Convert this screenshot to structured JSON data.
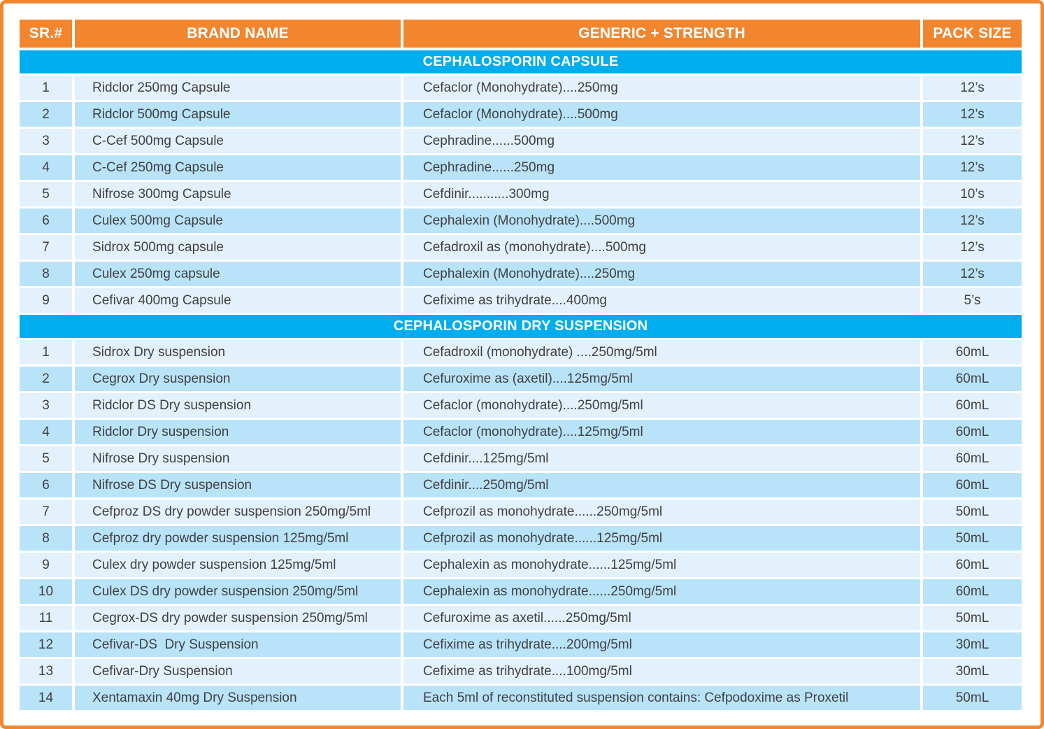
{
  "colors": {
    "accent_orange": "#F1862F",
    "accent_cyan": "#00ADEE",
    "row_light": "#E2F1FB",
    "row_dark": "#B9E3F8",
    "text": "#414042"
  },
  "table": {
    "columns": {
      "sr": "SR.#",
      "brand": "BRAND NAME",
      "generic": "GENERIC + STRENGTH",
      "pack": "PACK SIZE"
    },
    "sections": [
      {
        "title": "CEPHALOSPORIN CAPSULE",
        "rows": [
          {
            "sr": "1",
            "brand": "Ridclor 250mg Capsule",
            "generic": "Cefaclor (Monohydrate)....250mg",
            "pack": "12’s"
          },
          {
            "sr": "2",
            "brand": "Ridclor 500mg Capsule",
            "generic": "Cefaclor (Monohydrate)....500mg",
            "pack": "12’s"
          },
          {
            "sr": "3",
            "brand": "C-Cef 500mg Capsule",
            "generic": "Cephradine......500mg",
            "pack": "12’s"
          },
          {
            "sr": "4",
            "brand": "C-Cef 250mg Capsule",
            "generic": "Cephradine......250mg",
            "pack": "12’s"
          },
          {
            "sr": "5",
            "brand": "Nifrose 300mg Capsule",
            "generic": "Cefdinir...........300mg",
            "pack": "10’s"
          },
          {
            "sr": "6",
            "brand": "Culex 500mg Capsule",
            "generic": "Cephalexin (Monohydrate)....500mg",
            "pack": "12’s"
          },
          {
            "sr": "7",
            "brand": "Sidrox 500mg capsule",
            "generic": "Cefadroxil as (monohydrate)....500mg",
            "pack": "12’s"
          },
          {
            "sr": "8",
            "brand": "Culex 250mg capsule",
            "generic": "Cephalexin (Monohydrate)....250mg",
            "pack": "12’s"
          },
          {
            "sr": "9",
            "brand": "Cefivar 400mg Capsule",
            "generic": "Cefixime as trihydrate....400mg",
            "pack": "5’s"
          }
        ]
      },
      {
        "title": "CEPHALOSPORIN DRY SUSPENSION",
        "rows": [
          {
            "sr": "1",
            "brand": "Sidrox Dry suspension",
            "generic": "Cefadroxil (monohydrate) ....250mg/5ml",
            "pack": "60mL"
          },
          {
            "sr": "2",
            "brand": "Cegrox Dry suspension",
            "generic": "Cefuroxime as (axetil)....125mg/5ml",
            "pack": "60mL"
          },
          {
            "sr": "3",
            "brand": "Ridclor DS Dry suspension",
            "generic": "Cefaclor (monohydrate)....250mg/5ml",
            "pack": "60mL"
          },
          {
            "sr": "4",
            "brand": "Ridclor Dry suspension",
            "generic": "Cefaclor (monohydrate)....125mg/5ml",
            "pack": "60mL"
          },
          {
            "sr": "5",
            "brand": "Nifrose Dry suspension",
            "generic": "Cefdinir....125mg/5ml",
            "pack": "60mL"
          },
          {
            "sr": "6",
            "brand": "Nifrose DS Dry suspension",
            "generic": "Cefdinir....250mg/5ml",
            "pack": "60mL"
          },
          {
            "sr": "7",
            "brand": "Cefproz DS dry powder suspension 250mg/5ml",
            "generic": "Cefprozil as monohydrate......250mg/5ml",
            "pack": "50mL"
          },
          {
            "sr": "8",
            "brand": "Cefproz dry powder suspension 125mg/5ml",
            "generic": "Cefprozil as monohydrate......125mg/5ml",
            "pack": "50mL"
          },
          {
            "sr": "9",
            "brand": "Culex dry powder suspension 125mg/5ml",
            "generic": "Cephalexin as monohydrate......125mg/5ml",
            "pack": "60mL"
          },
          {
            "sr": "10",
            "brand": "Culex DS dry powder suspension 250mg/5ml",
            "generic": "Cephalexin as monohydrate......250mg/5ml",
            "pack": "60mL"
          },
          {
            "sr": "11",
            "brand": "Cegrox-DS dry powder suspension 250mg/5ml",
            "generic": "Cefuroxime as axetil......250mg/5ml",
            "pack": "50mL"
          },
          {
            "sr": "12",
            "brand": "Cefivar-DS  Dry Suspension",
            "generic": "Cefixime as trihydrate....200mg/5ml",
            "pack": "30mL"
          },
          {
            "sr": "13",
            "brand": "Cefivar-Dry Suspension",
            "generic": "Cefixime as trihydrate....100mg/5ml",
            "pack": "30mL"
          },
          {
            "sr": "14",
            "brand": "Xentamaxin 40mg Dry Suspension",
            "generic": "Each 5ml of reconstituted suspension contains: Cefpodoxime as Proxetil",
            "pack": "50mL"
          }
        ]
      }
    ]
  }
}
